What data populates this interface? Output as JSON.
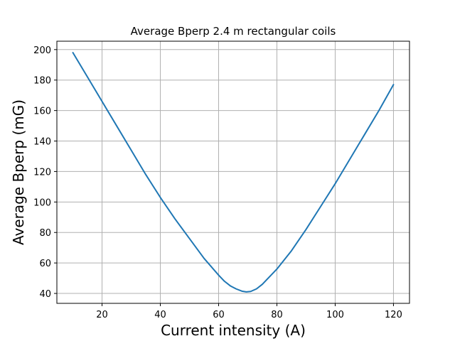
{
  "chart_data": {
    "type": "line",
    "title": "Average Bperp 2.4 m rectangular coils",
    "xlabel": "Current intensity (A)",
    "ylabel": "Average Bperp (mG)",
    "xlim": [
      4.5,
      125.5
    ],
    "ylim": [
      33.5,
      205.5
    ],
    "xticks": [
      20,
      40,
      60,
      80,
      100,
      120
    ],
    "yticks": [
      40,
      60,
      80,
      100,
      120,
      140,
      160,
      180,
      200
    ],
    "grid": true,
    "series": [
      {
        "color": "#1f77b4",
        "x": [
          10,
          15,
          20,
          25,
          30,
          35,
          40,
          45,
          50,
          55,
          60,
          62,
          64,
          66,
          68,
          69.5,
          71,
          73,
          75,
          77,
          80,
          85,
          90,
          95,
          100,
          105,
          110,
          115,
          120
        ],
        "y": [
          198,
          182,
          166,
          150,
          134,
          118,
          103,
          89,
          76,
          63,
          52,
          48,
          45,
          43,
          41.5,
          41,
          41.3,
          43,
          46,
          50,
          56,
          68,
          82,
          97,
          112,
          128,
          144,
          160,
          177
        ]
      }
    ]
  }
}
